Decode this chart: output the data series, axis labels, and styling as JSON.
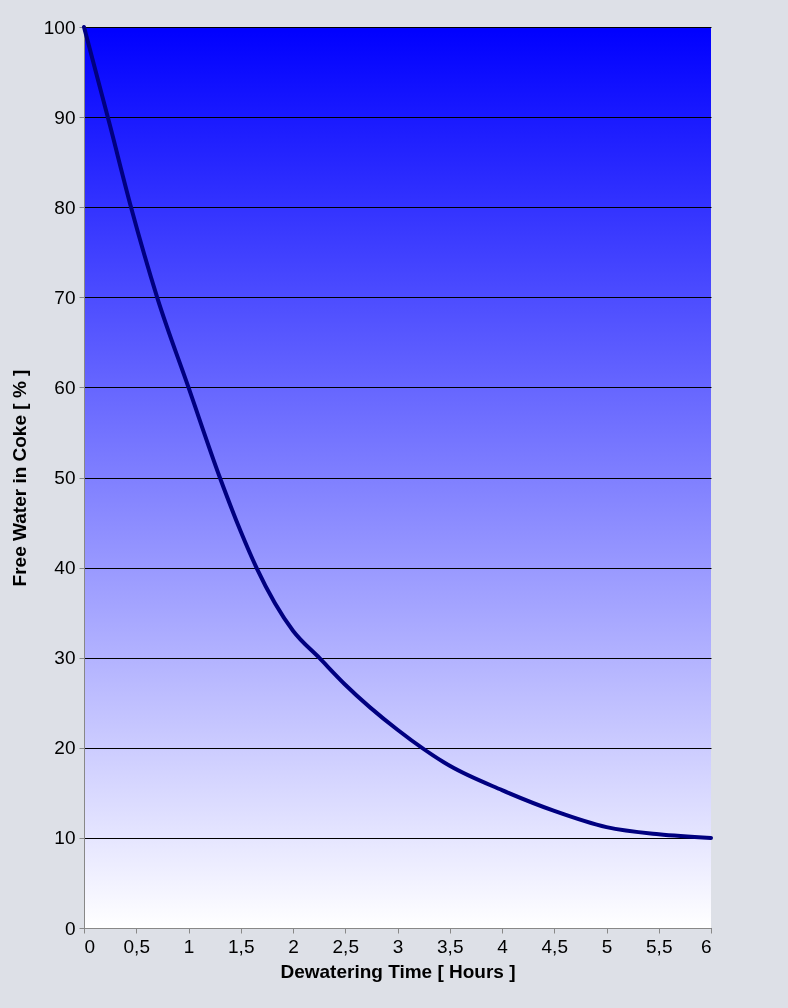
{
  "chart_data": {
    "type": "line",
    "xlabel": "Dewatering Time [ Hours ]",
    "ylabel": "Free Water in Coke [ % ]",
    "x": [
      0,
      0.25,
      0.45,
      0.7,
      1,
      1.3,
      1.5,
      1.65,
      2,
      2.25,
      2.5,
      3,
      3.5,
      4,
      4.5,
      5,
      5.5,
      6
    ],
    "series": [
      {
        "color": "#000080",
        "values": [
          100,
          89,
          80,
          70,
          60,
          50,
          44,
          40,
          33,
          30,
          27,
          22,
          18,
          15.3,
          13,
          11.2,
          10.4,
          10
        ]
      }
    ],
    "xlim": [
      0,
      6
    ],
    "xticks": [
      0,
      {
        "value": 0.5,
        "label": "0,5"
      },
      1,
      {
        "value": 1.5,
        "label": "1,5"
      },
      2,
      {
        "value": 2.5,
        "label": "2,5"
      },
      3,
      {
        "value": 3.5,
        "label": "3,5"
      },
      4,
      {
        "value": 4.5,
        "label": "4,5"
      },
      5,
      {
        "value": 5.5,
        "label": "5,5"
      },
      6
    ],
    "ylim": [
      0,
      100
    ],
    "yticks": [
      0,
      10,
      20,
      30,
      40,
      50,
      60,
      70,
      80,
      90,
      100
    ],
    "grid": "y",
    "marker": "none",
    "line_style": "solid"
  }
}
